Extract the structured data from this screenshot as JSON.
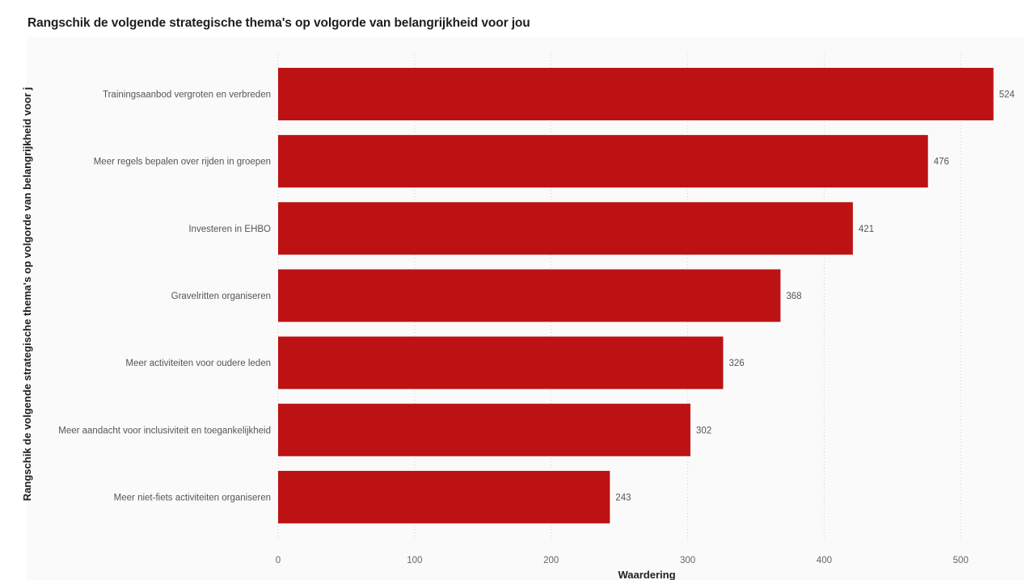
{
  "page": {
    "title": "Rangschik de volgende strategische thema's op volgorde van belangrijkheid voor jou"
  },
  "chart_data": {
    "type": "bar",
    "orientation": "horizontal",
    "title": "Rangschik de volgende strategische thema's op volgorde van belangrijkheid voor jou",
    "xlabel": "Waardering",
    "ylabel": "Rangschik de volgende strategische thema's op volgorde van belangrijkheid voor j",
    "categories": [
      "Trainingsaanbod vergroten en verbreden",
      "Meer regels bepalen over rijden in groepen",
      "Investeren in EHBO",
      "Gravelritten organiseren",
      "Meer activiteiten voor oudere leden",
      "Meer aandacht voor inclusiviteit en toegankelijkheid",
      "Meer niet-fiets activiteiten organiseren"
    ],
    "values": [
      524,
      476,
      421,
      368,
      326,
      302,
      243
    ],
    "xlim": [
      0,
      540
    ],
    "xticks": [
      0,
      100,
      200,
      300,
      400,
      500
    ],
    "grid": true,
    "bar_color": "#bd1214",
    "data_labels": true
  }
}
